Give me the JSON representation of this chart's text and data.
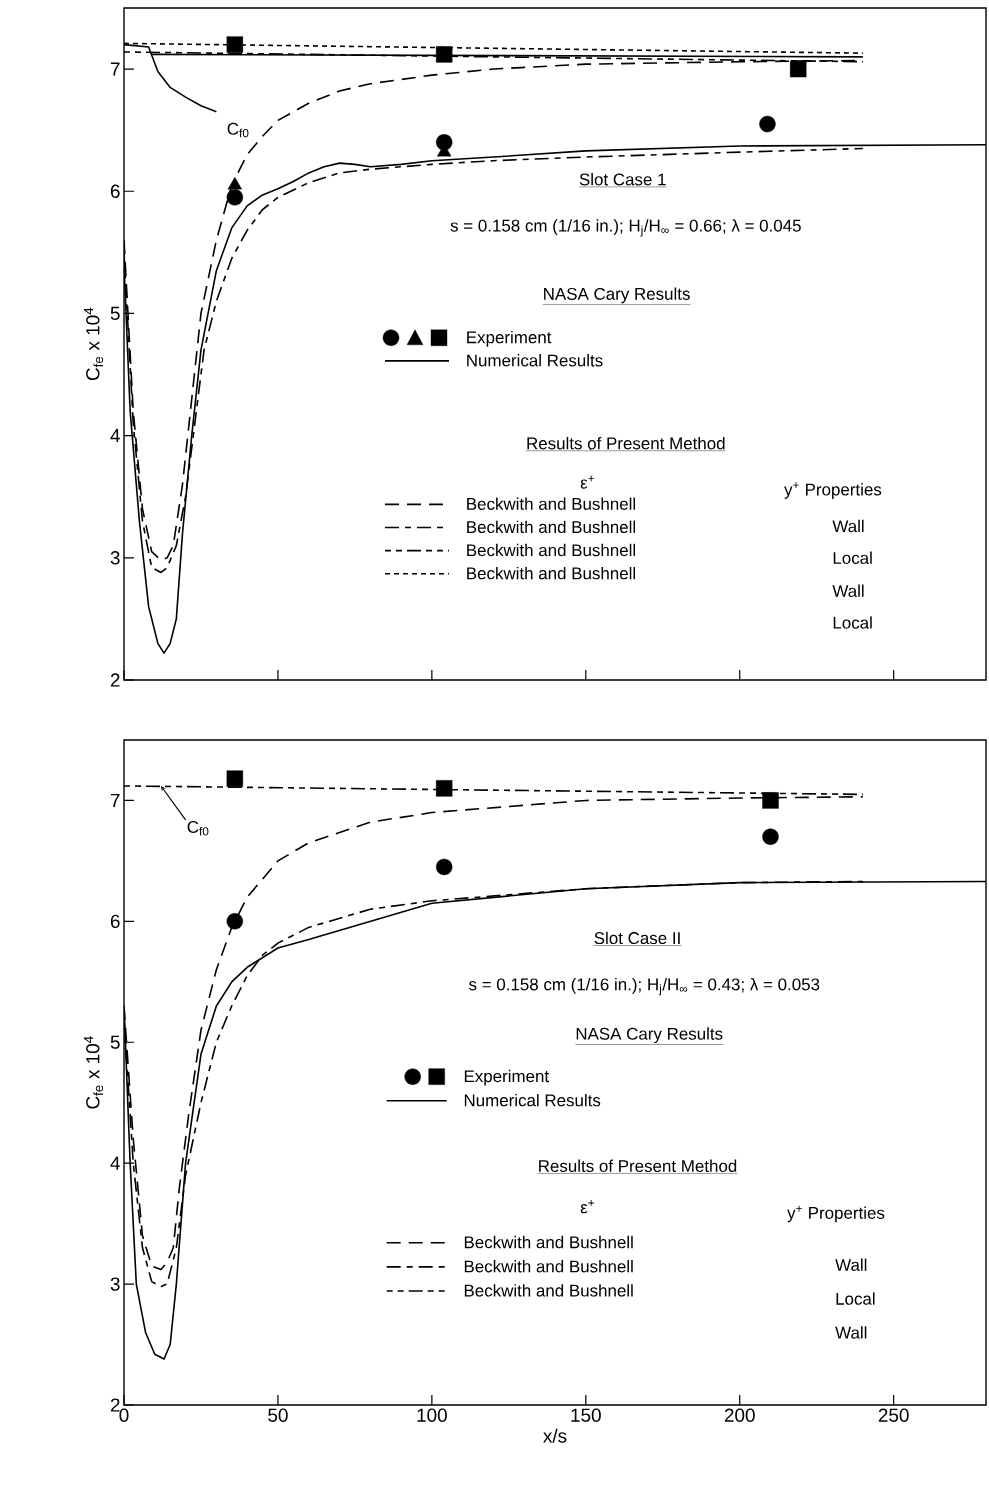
{
  "chart_data": [
    {
      "type": "line",
      "ylabel": "C$_{fe}$ x 10$^{4}$",
      "xlim": [
        0,
        280
      ],
      "xticks": [
        0,
        50,
        100,
        150,
        200,
        250
      ],
      "ylim": [
        2,
        7.5
      ],
      "yticks": [
        2,
        3,
        4,
        5,
        6,
        7
      ],
      "tick_labels": "y",
      "legend": "bottom left",
      "annotations": [
        "Slot Case 1",
        "s = 0.158 cm (1/16 in.); H$_{j}$/H$_{∞}$ = 0.66; λ = 0.045",
        "NASA Cary Results",
        "Results of Present Method",
        "ε$^{+}$",
        "y$^{+}$ Properties",
        "Wall",
        "Local",
        "Wall",
        "Local",
        {
          "text": "C$_{f0}$",
          "x": 30,
          "y": 6.65
        }
      ],
      "series": [
        {
          "type": "scatter",
          "marker": "circle",
          "color": "#000000",
          "x": [
            36,
            104,
            209
          ],
          "values": [
            5.95,
            6.4,
            6.55
          ]
        },
        {
          "type": "scatter",
          "marker": "triangle",
          "color": "#000000",
          "x": [
            36,
            104
          ],
          "values": [
            6.05,
            6.32
          ]
        },
        {
          "name": "Experiment",
          "type": "scatter",
          "marker": "square",
          "color": "#000000",
          "x": [
            36,
            104,
            219
          ],
          "values": [
            7.2,
            7.12,
            7.0
          ]
        },
        {
          "name": "Numerical Results",
          "line_style": "solid",
          "color": "#000000",
          "x": [
            0,
            2,
            5,
            8,
            11,
            13,
            15,
            17,
            19,
            22,
            25,
            30,
            35,
            40,
            45,
            50,
            55,
            60,
            65,
            70,
            75,
            80,
            90,
            100,
            120,
            150,
            200,
            280
          ],
          "values": [
            5.4,
            4.2,
            3.3,
            2.6,
            2.3,
            2.22,
            2.3,
            2.5,
            3.2,
            4.0,
            4.7,
            5.35,
            5.7,
            5.88,
            5.97,
            6.02,
            6.08,
            6.15,
            6.2,
            6.23,
            6.22,
            6.2,
            6.22,
            6.25,
            6.28,
            6.33,
            6.37,
            6.38
          ]
        },
        {
          "line_style": "solid",
          "color": "#000000",
          "x": [
            0,
            8,
            11,
            15,
            20,
            25,
            30
          ],
          "values": [
            7.2,
            7.18,
            6.98,
            6.85,
            6.77,
            6.7,
            6.65
          ]
        },
        {
          "line_style": "solid",
          "color": "#000000",
          "x": [
            9,
            240
          ],
          "values": [
            7.12,
            7.1
          ]
        },
        {
          "name": "Beckwith and Bushnell",
          "line_style": "dashed",
          "color": "#000000",
          "x": [
            0,
            3,
            6,
            9,
            12,
            14,
            16,
            19,
            22,
            25,
            30,
            35,
            40,
            45,
            50,
            60,
            70,
            80,
            100,
            120,
            150,
            200,
            240
          ],
          "values": [
            5.6,
            4.2,
            3.4,
            3.05,
            2.98,
            3.0,
            3.1,
            3.6,
            4.3,
            5.0,
            5.6,
            6.05,
            6.3,
            6.45,
            6.58,
            6.72,
            6.82,
            6.88,
            6.95,
            7.0,
            7.04,
            7.06,
            7.07
          ]
        },
        {
          "name": "Beckwith and Bushnell",
          "line_style": "dashed",
          "color": "#000000",
          "x": [
            0,
            3,
            6,
            9,
            12,
            14,
            17,
            20,
            23,
            26,
            30,
            35,
            40,
            45,
            50,
            60,
            70,
            80,
            90,
            100,
            120,
            150,
            200,
            240
          ],
          "values": [
            5.5,
            4.1,
            3.3,
            2.92,
            2.88,
            2.92,
            3.1,
            3.5,
            4.1,
            4.7,
            5.1,
            5.45,
            5.68,
            5.85,
            5.95,
            6.07,
            6.15,
            6.18,
            6.2,
            6.22,
            6.25,
            6.28,
            6.32,
            6.35
          ]
        },
        {
          "name": "Beckwith and Bushnell",
          "line_style": "dashed",
          "color": "#000000",
          "x": [
            0,
            240
          ],
          "values": [
            7.14,
            7.06
          ]
        },
        {
          "name": "Beckwith and Bushnell",
          "line_style": "dashed",
          "color": "#000000",
          "x": [
            0,
            240
          ],
          "values": [
            7.21,
            7.13
          ]
        }
      ]
    },
    {
      "type": "line",
      "xlabel": "x/s",
      "ylabel": "C$_{fe}$ x 10$^{4}$",
      "xlim": [
        0,
        280
      ],
      "xticks": [
        0,
        50,
        100,
        150,
        200,
        250
      ],
      "ylim": [
        2,
        7.5
      ],
      "yticks": [
        2,
        3,
        4,
        5,
        6,
        7
      ],
      "legend": "bottom left",
      "annotations": [
        "Slot Case II",
        "s = 0.158 cm (1/16 in.); H$_{j}$/H$_{∞}$ = 0.43; λ = 0.053",
        "NASA Cary Results",
        "Results of Present Method",
        "ε$^{+}$",
        "y$^{+}$ Properties",
        "Wall",
        "Local",
        "Wall",
        {
          "text": "C$_{f0}$",
          "x": 12,
          "y": 7.12
        }
      ],
      "series": [
        {
          "type": "scatter",
          "marker": "circle",
          "color": "#000000",
          "x": [
            36,
            104,
            210
          ],
          "values": [
            6.0,
            6.45,
            6.7
          ]
        },
        {
          "name": "Experiment",
          "type": "scatter",
          "marker": "square",
          "color": "#000000",
          "x": [
            36,
            104,
            210
          ],
          "values": [
            7.18,
            7.1,
            7.0
          ]
        },
        {
          "name": "Numerical Results",
          "line_style": "solid",
          "color": "#000000",
          "x": [
            0,
            2,
            4,
            7,
            10,
            13,
            15,
            17,
            20,
            25,
            30,
            35,
            40,
            50,
            60,
            80,
            100,
            150,
            200,
            280
          ],
          "values": [
            5.3,
            4.0,
            3.0,
            2.6,
            2.42,
            2.38,
            2.5,
            3.0,
            4.0,
            4.9,
            5.3,
            5.5,
            5.62,
            5.78,
            5.85,
            6.0,
            6.15,
            6.27,
            6.32,
            6.33
          ]
        },
        {
          "name": "Beckwith and Bushnell",
          "line_style": "dashed",
          "color": "#000000",
          "x": [
            0,
            3,
            6,
            9,
            12,
            14,
            16,
            18,
            21,
            25,
            30,
            35,
            40,
            50,
            60,
            80,
            100,
            150,
            200,
            240
          ],
          "values": [
            5.3,
            4.2,
            3.4,
            3.15,
            3.12,
            3.18,
            3.3,
            3.8,
            4.4,
            5.1,
            5.6,
            5.95,
            6.2,
            6.5,
            6.65,
            6.82,
            6.9,
            7.0,
            7.02,
            7.03
          ]
        },
        {
          "name": "Beckwith and Bushnell",
          "line_style": "dashed",
          "color": "#000000",
          "x": [
            0,
            3,
            6,
            9,
            12,
            14,
            17,
            20,
            25,
            30,
            35,
            40,
            45,
            50,
            60,
            80,
            100,
            150,
            200,
            240
          ],
          "values": [
            5.2,
            4.0,
            3.3,
            3.02,
            2.98,
            3.0,
            3.3,
            3.9,
            4.5,
            5.0,
            5.3,
            5.55,
            5.72,
            5.82,
            5.95,
            6.1,
            6.17,
            6.27,
            6.32,
            6.33
          ]
        },
        {
          "name": "Beckwith and Bushnell",
          "line_style": "dashed",
          "color": "#000000",
          "x": [
            0,
            240
          ],
          "values": [
            7.12,
            7.05
          ]
        }
      ]
    }
  ]
}
